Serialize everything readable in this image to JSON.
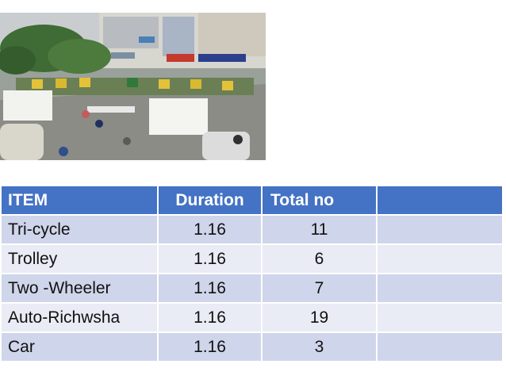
{
  "table": {
    "headers": [
      "ITEM",
      "Duration",
      "Total no",
      ""
    ],
    "rows": [
      {
        "item": "Tri-cycle",
        "duration": "1.16",
        "total": "11",
        "extra": ""
      },
      {
        "item": "Trolley",
        "duration": "1.16",
        "total": "6",
        "extra": ""
      },
      {
        "item": "Two -Wheeler",
        "duration": "1.16",
        "total": "7",
        "extra": ""
      },
      {
        "item": "Auto-Richwsha",
        "duration": "1.16",
        "total": "19",
        "extra": ""
      },
      {
        "item": "Car",
        "duration": "1.16",
        "total": "3",
        "extra": ""
      }
    ]
  },
  "colors": {
    "header_bg": "#4472c4",
    "row_odd": "#cfd5ea",
    "row_even": "#e9ebf5"
  }
}
